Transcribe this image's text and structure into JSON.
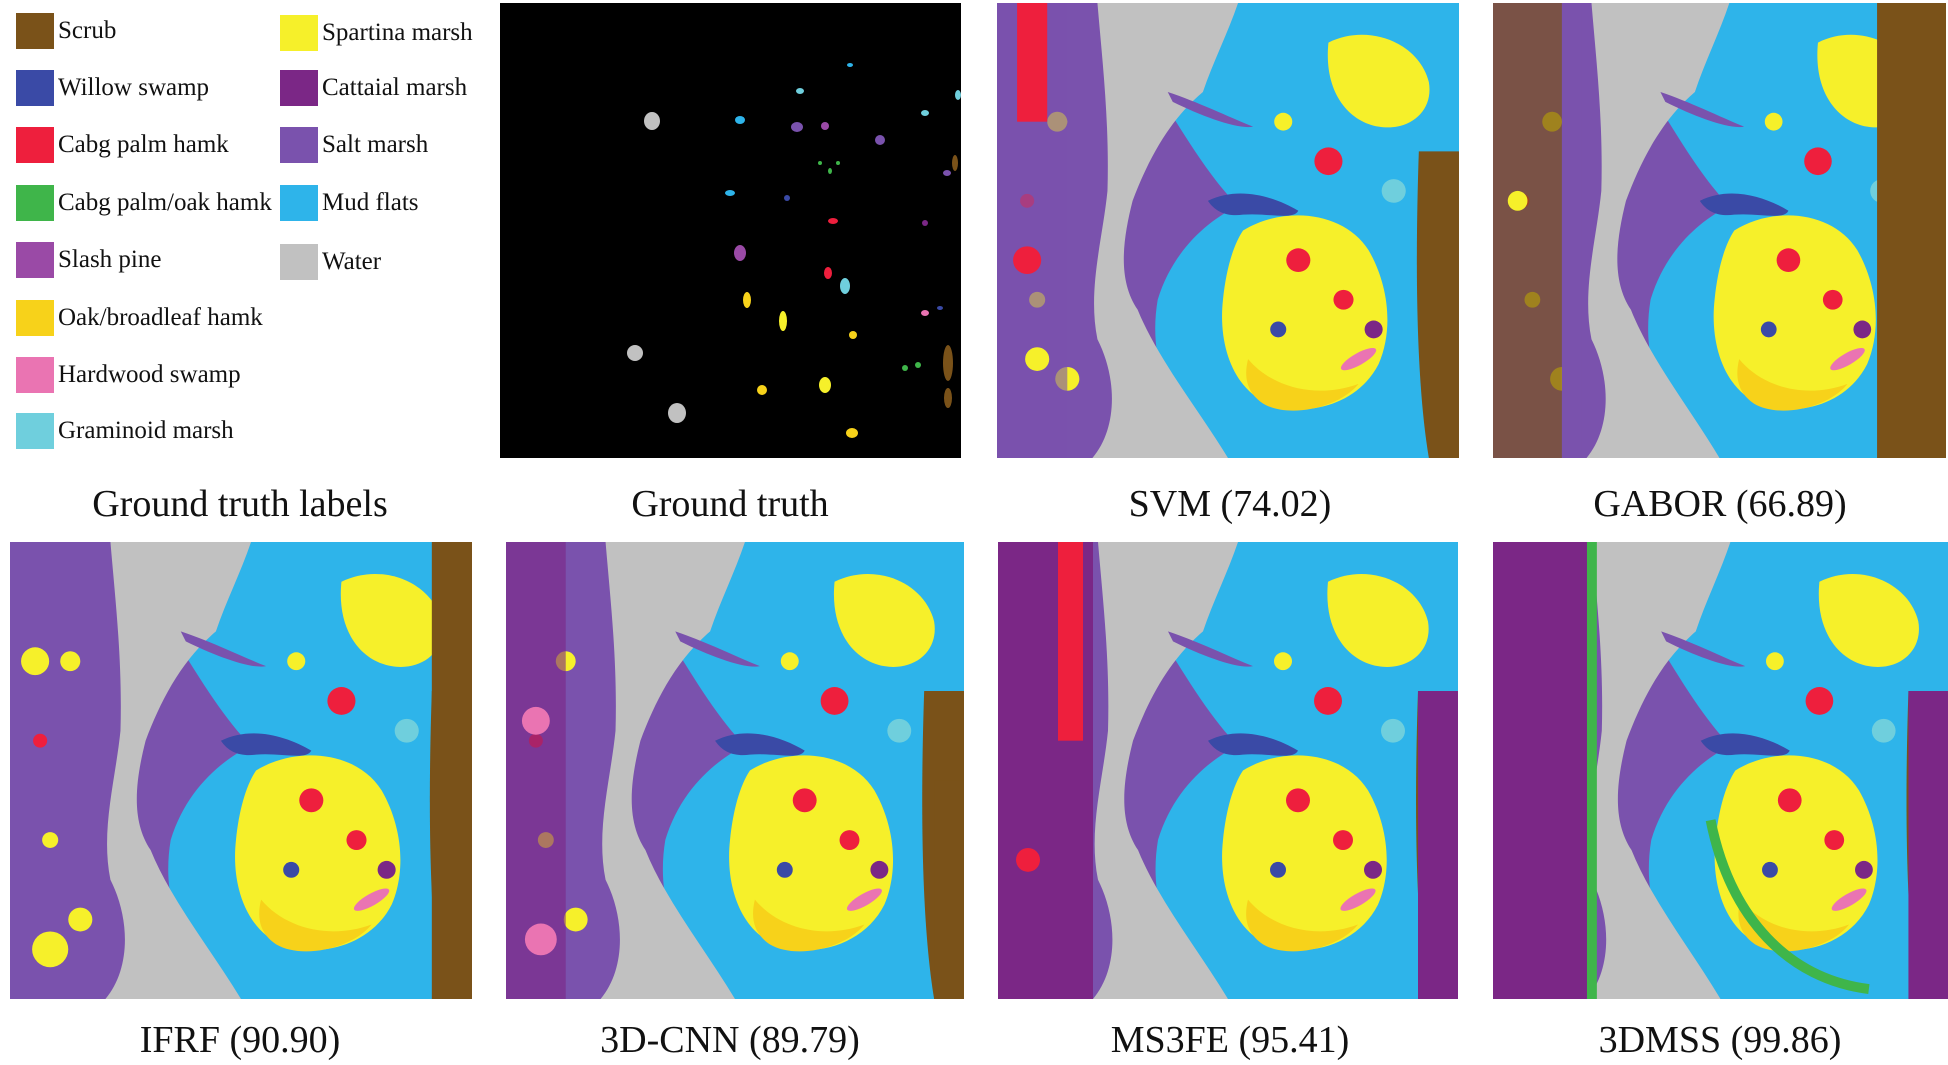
{
  "legend": [
    {
      "label": "Scrub",
      "color": "#7a5219"
    },
    {
      "label": "Willow swamp",
      "color": "#3a4aa6"
    },
    {
      "label": "Cabg palm hamk",
      "color": "#ee1f3d"
    },
    {
      "label": "Cabg palm/oak hamk",
      "color": "#3fb54a"
    },
    {
      "label": "Slash pine",
      "color": "#9a4aa6"
    },
    {
      "label": "Oak/broadleaf hamk",
      "color": "#f7d21a"
    },
    {
      "label": "Hardwood swamp",
      "color": "#ea74b2"
    },
    {
      "label": "Graminoid marsh",
      "color": "#6fcfdd"
    },
    {
      "label": "Spartina marsh",
      "color": "#f6f02a"
    },
    {
      "label": "Cattaial marsh",
      "color": "#7b2786"
    },
    {
      "label": "Salt marsh",
      "color": "#7a52ad"
    },
    {
      "label": "Mud flats",
      "color": "#2eb4ea"
    },
    {
      "label": "Water",
      "color": "#c1c1c1"
    }
  ],
  "captions": {
    "legend": "Ground truth labels",
    "ground_truth": "Ground truth",
    "svm": "SVM (74.02)",
    "gabor": "GABOR (66.89)",
    "ifrf": "IFRF (90.90)",
    "cnn3d": "3D-CNN (89.79)",
    "ms3fe": "MS3FE (95.41)",
    "dmss3": "3DMSS (99.86)"
  }
}
